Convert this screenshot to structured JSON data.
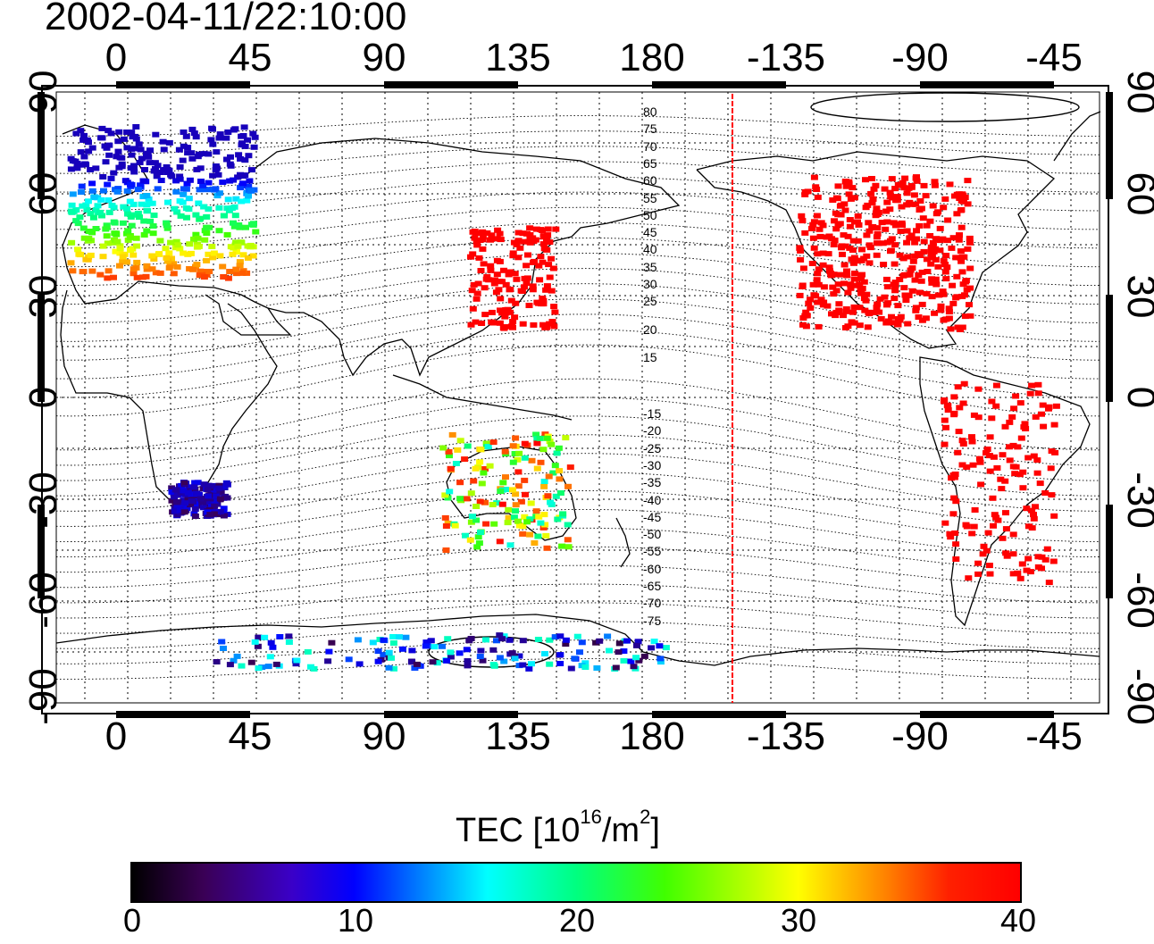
{
  "title": "2002-04-11/22:10:00",
  "longitude_ticks": [
    "0",
    "45",
    "90",
    "135",
    "180",
    "-135",
    "-90",
    "-45"
  ],
  "latitude_ticks": [
    "90",
    "60",
    "30",
    "0",
    "-30",
    "-60",
    "-90"
  ],
  "colorbar": {
    "title_main": "TEC  [10",
    "title_sup1": "16",
    "title_mid": "/m",
    "title_sup2": "2",
    "title_end": "]",
    "ticks": [
      "0",
      "10",
      "20",
      "30",
      "40"
    ],
    "colors": [
      "#000000",
      "#3a0055",
      "#0000ff",
      "#00ffff",
      "#00ff80",
      "#40ff00",
      "#ffff00",
      "#ff8000",
      "#ff0000"
    ]
  },
  "magnetic_lat_labels_north": [
    "80",
    "75",
    "70",
    "65",
    "60",
    "55",
    "50",
    "45",
    "40",
    "35",
    "30",
    "25",
    "20",
    "15"
  ],
  "magnetic_lat_labels_south": [
    "-15",
    "-20",
    "-25",
    "-30",
    "-35",
    "-40",
    "-45",
    "-50",
    "-55",
    "-60",
    "-65",
    "-70",
    "-75"
  ],
  "terminator_color": "#ff0000",
  "map_data": {
    "projection": "equirectangular",
    "lon_range": [
      -25,
      340
    ],
    "lat_range": [
      -90,
      90
    ],
    "grid": true,
    "regions": [
      {
        "name": "europe",
        "lon": [
          -20,
          45
        ],
        "lat": [
          35,
          80
        ],
        "tec": [
          8,
          38
        ]
      },
      {
        "name": "east_asia",
        "lon": [
          120,
          150
        ],
        "lat": [
          20,
          50
        ],
        "tec": [
          40,
          40
        ]
      },
      {
        "name": "north_america",
        "lon": [
          -125,
          -65
        ],
        "lat": [
          20,
          65
        ],
        "tec": [
          40,
          40
        ]
      },
      {
        "name": "south_america",
        "lon": [
          -75,
          -35
        ],
        "lat": [
          -55,
          5
        ],
        "tec": [
          40,
          40
        ]
      },
      {
        "name": "australia",
        "lon": [
          110,
          155
        ],
        "lat": [
          -45,
          -10
        ],
        "tec": [
          16,
          40
        ]
      },
      {
        "name": "africa_south",
        "lon": [
          15,
          35
        ],
        "lat": [
          -35,
          -25
        ],
        "tec": [
          5,
          10
        ]
      },
      {
        "name": "antarctica",
        "lon": [
          30,
          190
        ],
        "lat": [
          -80,
          -70
        ],
        "tec": [
          4,
          18
        ]
      }
    ]
  }
}
